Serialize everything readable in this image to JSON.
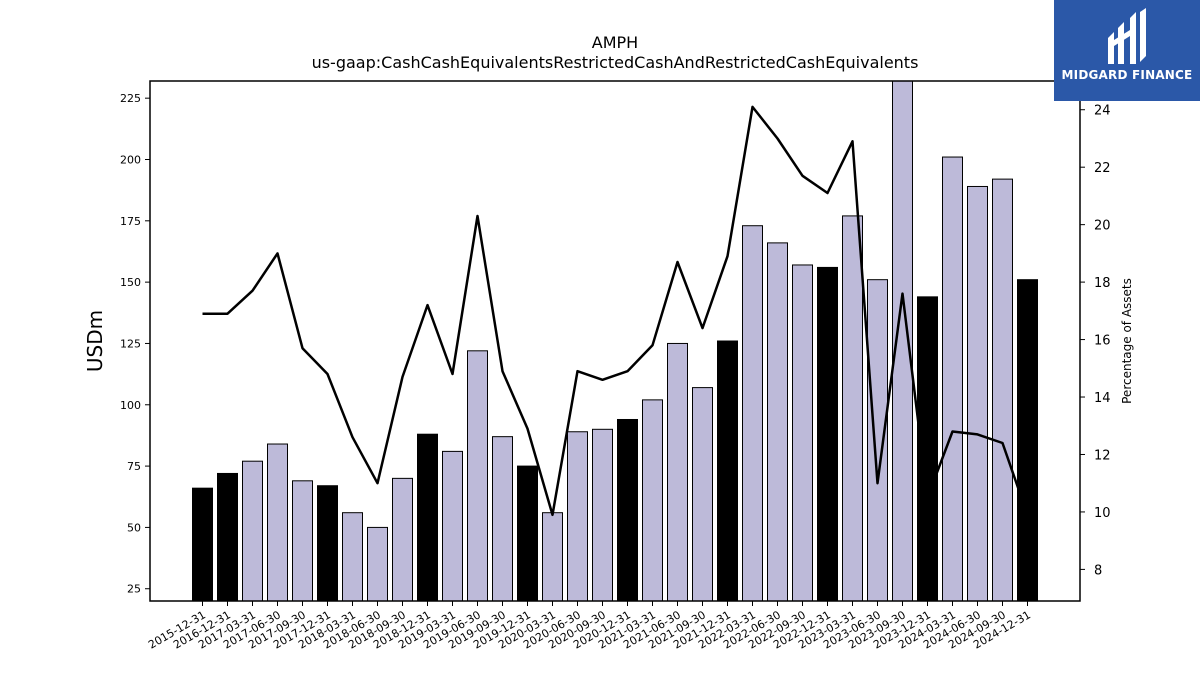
{
  "chart_data": {
    "type": "bar",
    "title": "AMPH",
    "subtitle": "us-gaap:CashCashEquivalentsRestrictedCashAndRestrictedCashEquivalents",
    "ylabel": "USDm",
    "y2label": "Percentage of Assets",
    "ylim": [
      20,
      232
    ],
    "y2lim": [
      6.9,
      25.0
    ],
    "yticks": [
      25,
      50,
      75,
      100,
      125,
      150,
      175,
      200,
      225
    ],
    "y2ticks": [
      8,
      10,
      12,
      14,
      16,
      18,
      20,
      22,
      24
    ],
    "categories": [
      "2015-12-31",
      "2016-12-31",
      "2017-03-31",
      "2017-06-30",
      "2017-09-30",
      "2017-12-31",
      "2018-03-31",
      "2018-06-30",
      "2018-09-30",
      "2018-12-31",
      "2019-03-31",
      "2019-06-30",
      "2019-09-30",
      "2019-12-31",
      "2020-03-31",
      "2020-06-30",
      "2020-09-30",
      "2020-12-31",
      "2021-03-31",
      "2021-06-30",
      "2021-09-30",
      "2021-12-31",
      "2022-03-31",
      "2022-06-30",
      "2022-09-30",
      "2022-12-31",
      "2023-03-31",
      "2023-06-30",
      "2023-09-30",
      "2023-12-31",
      "2024-03-31",
      "2024-06-30",
      "2024-09-30",
      "2024-12-31"
    ],
    "series": [
      {
        "type": "bar",
        "values": [
          66,
          72,
          77,
          84,
          69,
          67,
          56,
          50,
          70,
          88,
          81,
          122,
          87,
          75,
          56,
          89,
          90,
          94,
          102,
          125,
          107,
          126,
          173,
          166,
          157,
          156,
          177,
          151,
          232,
          144,
          201,
          189,
          192,
          151
        ],
        "annual": [
          true,
          true,
          false,
          false,
          false,
          true,
          false,
          false,
          false,
          true,
          false,
          false,
          false,
          true,
          false,
          false,
          false,
          true,
          false,
          false,
          false,
          true,
          false,
          false,
          false,
          true,
          false,
          false,
          false,
          true,
          false,
          false,
          false,
          true
        ]
      },
      {
        "type": "line",
        "axis": "right",
        "values": [
          16.9,
          16.9,
          17.7,
          19.0,
          15.7,
          14.8,
          12.6,
          11.0,
          14.7,
          17.2,
          14.8,
          20.3,
          14.9,
          12.9,
          9.9,
          14.9,
          14.6,
          14.9,
          15.8,
          18.7,
          16.4,
          18.9,
          24.1,
          23.0,
          21.7,
          21.1,
          22.9,
          11.0,
          17.6,
          10.5,
          12.8,
          12.7,
          12.4,
          9.9
        ]
      }
    ],
    "colors": {
      "annual_bar": "#000000",
      "quarter_bar": "#bdbad9",
      "line": "#000000"
    }
  },
  "logo": {
    "text": "MIDGARD FINANCE"
  }
}
